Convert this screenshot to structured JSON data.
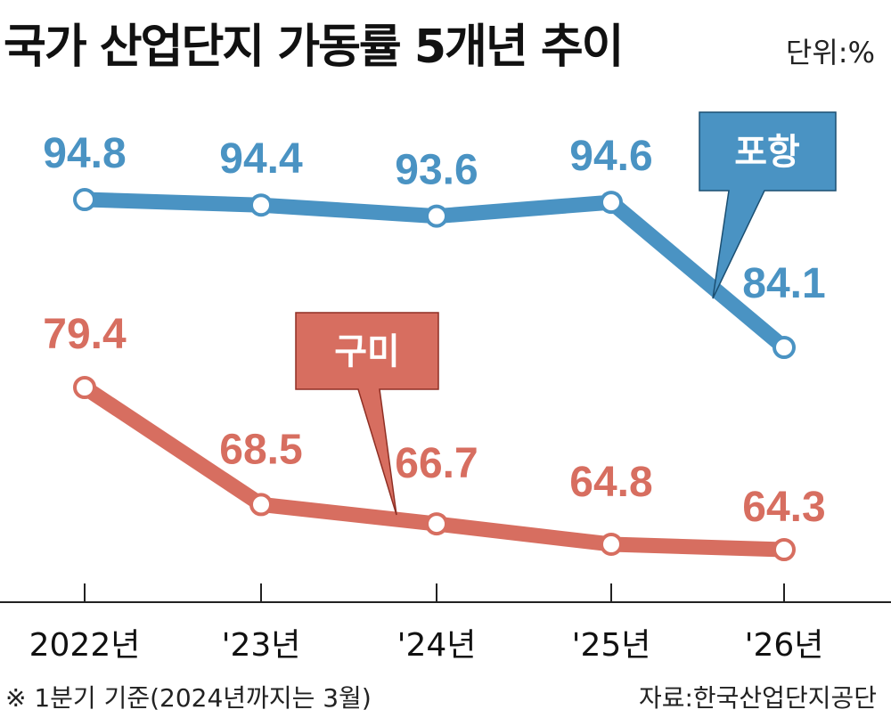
{
  "title": "국가 산업단지 가동률 5개년 추이",
  "unit": "단위:%",
  "footnote": "※ 1분기 기준(2024년까지는 3월)",
  "source": "자료:한국산업단지공단",
  "colors": {
    "pohang": "#4a93c3",
    "gumi": "#d76e60",
    "axis": "#222222"
  },
  "chart_data": {
    "type": "line",
    "categories": [
      "2022년",
      "'23년",
      "'24년",
      "'25년",
      "'26년"
    ],
    "series": [
      {
        "name": "포항",
        "values": [
          94.8,
          94.4,
          93.6,
          94.6,
          84.1
        ]
      },
      {
        "name": "구미",
        "values": [
          79.4,
          68.5,
          66.7,
          64.8,
          64.3
        ]
      }
    ],
    "data_labels": [
      [
        "94.8",
        "94.4",
        "93.6",
        "94.6",
        "84.1"
      ],
      [
        "79.4",
        "68.5",
        "66.7",
        "64.8",
        "64.3"
      ]
    ],
    "legend": "callout labels",
    "grid": false
  }
}
